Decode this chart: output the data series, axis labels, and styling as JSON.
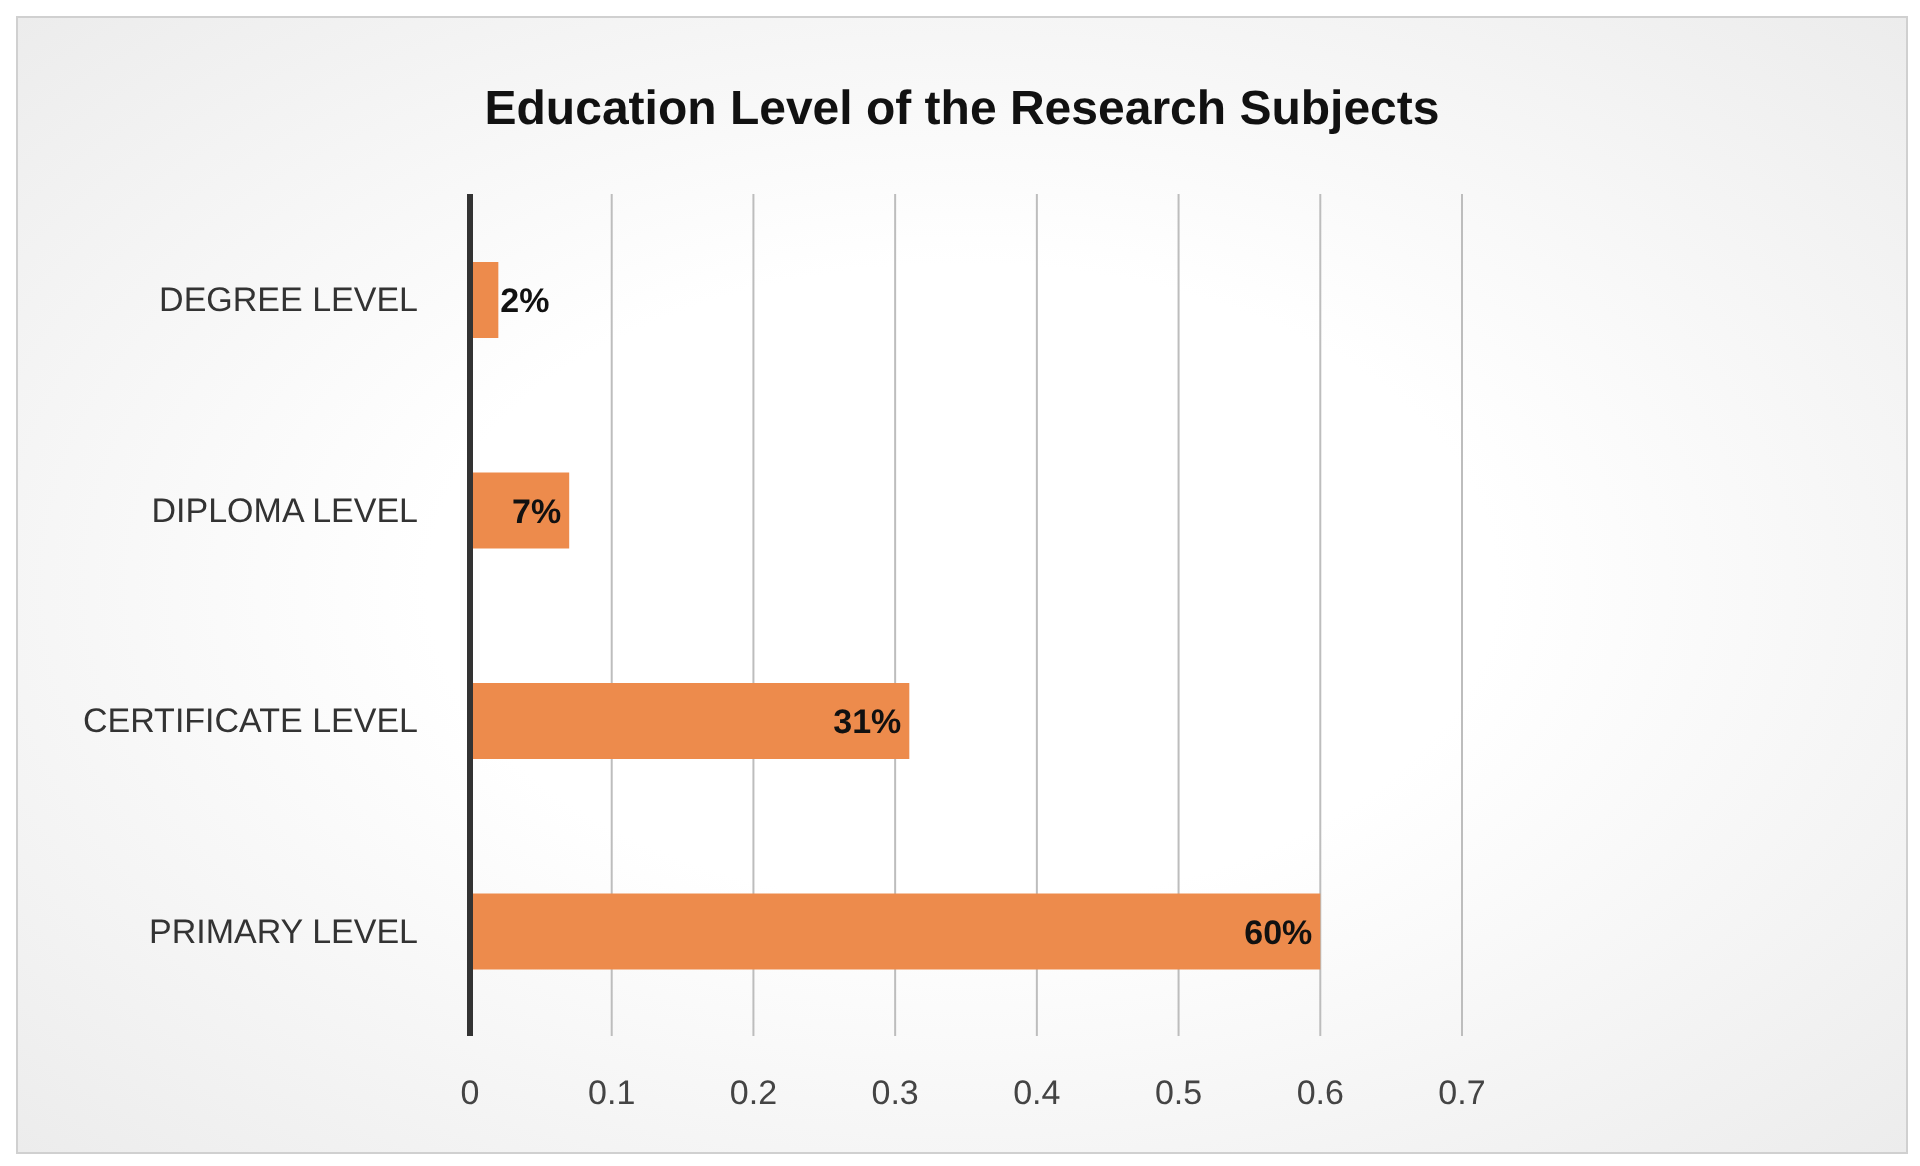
{
  "chart_data": {
    "type": "bar",
    "orientation": "horizontal",
    "title": "Education Level of the Research Subjects",
    "categories": [
      "DEGREE LEVEL",
      "DIPLOMA LEVEL",
      "CERTIFICATE LEVEL",
      "PRIMARY LEVEL"
    ],
    "values": [
      0.02,
      0.07,
      0.31,
      0.6
    ],
    "value_labels": [
      "2%",
      "7%",
      "31%",
      "60%"
    ],
    "color": "#ed8b4c",
    "xlim": [
      0,
      0.7
    ],
    "xticks": [
      0,
      0.1,
      0.2,
      0.3,
      0.4,
      0.5,
      0.6,
      0.7
    ],
    "grid": "x"
  }
}
